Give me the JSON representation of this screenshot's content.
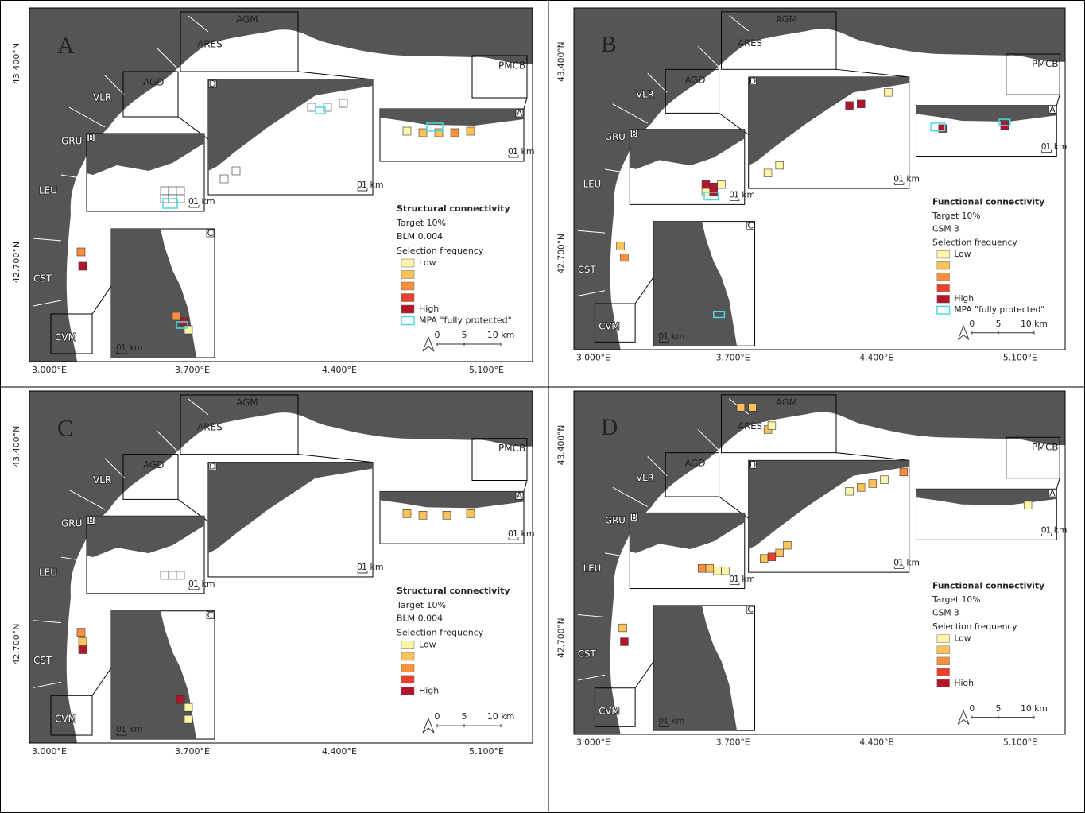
{
  "figure": {
    "panels": [
      {
        "letter": "A",
        "legend": {
          "title": "Structural connectivity",
          "target": "Target 10%",
          "parameter": "BLM 0.004",
          "frequency": "Selection frequency",
          "low": "Low",
          "high": "High",
          "mpa": "MPA \"fully protected\""
        }
      },
      {
        "letter": "B",
        "legend": {
          "title": "Functional connectivity",
          "target": "Target 10%",
          "parameter": "CSM 3",
          "frequency": "Selection frequency",
          "low": "Low",
          "high": "High",
          "mpa": "MPA \"fully protected\""
        }
      },
      {
        "letter": "C",
        "legend": {
          "title": "Structural connectivity",
          "target": "Target 10%",
          "parameter": "BLM 0.004",
          "frequency": "Selection frequency",
          "low": "Low",
          "high": "High"
        }
      },
      {
        "letter": "D",
        "legend": {
          "title": "Functional connectivity",
          "target": "Target 10%",
          "parameter": "CSM 3",
          "frequency": "Selection frequency",
          "low": "Low",
          "high": "High"
        }
      }
    ],
    "regions": [
      "AGM",
      "ARES",
      "AGD",
      "VLR",
      "GRU",
      "LEU",
      "CST",
      "CVM",
      "PMCB"
    ],
    "inset_labels": [
      "A",
      "B",
      "C",
      "D"
    ],
    "latitude_labels": [
      "43.400°N",
      "42.700°N"
    ],
    "longitude_labels": [
      "3.000°E",
      "3.700°E",
      "4.400°E",
      "5.100°E"
    ],
    "scale_labels": [
      "0",
      "5",
      "10 km"
    ],
    "inset_scale_labels": [
      "0",
      "1 km"
    ],
    "frequency_colors": [
      "#fdf5a8",
      "#fdc35a",
      "#f99040",
      "#e8432a",
      "#b3162b"
    ],
    "mpa_color": "#4dd9e0",
    "land_color": "#555555"
  }
}
